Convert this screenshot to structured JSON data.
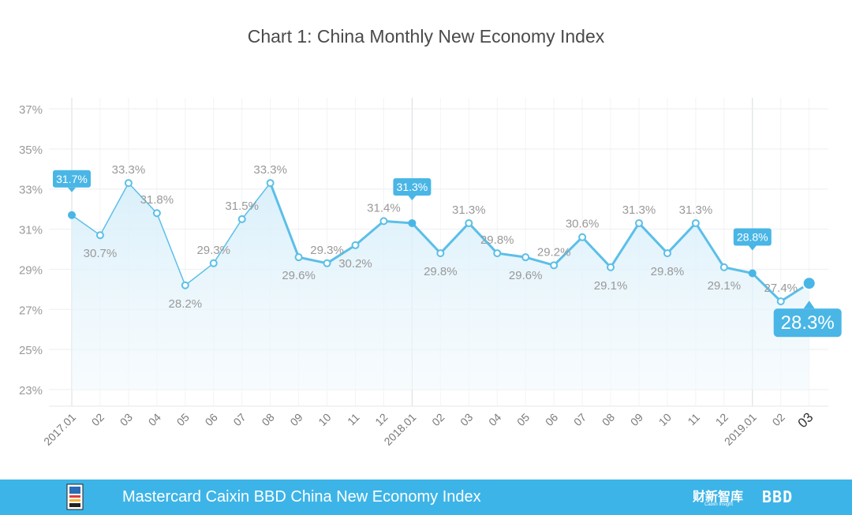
{
  "chart_data": {
    "type": "area",
    "title": "Chart 1: China Monthly New Economy Index",
    "x_labels": [
      "2017.01",
      "02",
      "03",
      "04",
      "05",
      "06",
      "07",
      "08",
      "09",
      "10",
      "11",
      "12",
      "2018.01",
      "02",
      "03",
      "04",
      "05",
      "06",
      "07",
      "08",
      "09",
      "10",
      "11",
      "12",
      "2019.01",
      "02",
      "03"
    ],
    "values": [
      31.7,
      30.7,
      33.3,
      31.8,
      28.2,
      29.3,
      31.5,
      33.3,
      29.6,
      29.3,
      30.2,
      31.4,
      31.3,
      29.8,
      31.3,
      29.8,
      29.6,
      29.2,
      30.6,
      29.1,
      31.3,
      29.8,
      31.3,
      29.1,
      28.8,
      27.4,
      28.3
    ],
    "data_labels": [
      "31.7%",
      "30.7%",
      "33.3%",
      "31.8%",
      "28.2%",
      "29.3%",
      "31.5%",
      "33.3%",
      "29.6%",
      "29.3%",
      "30.2%",
      "31.4%",
      "31.3%",
      "29.8%",
      "31.3%",
      "29.8%",
      "29.6%",
      "29.2%",
      "30.6%",
      "29.1%",
      "31.3%",
      "29.8%",
      "31.3%",
      "29.1%",
      "28.8%",
      "27.4%",
      "28.3%"
    ],
    "highlighted_points": [
      0,
      12,
      24,
      26
    ],
    "y_ticks": [
      "23%",
      "25%",
      "27%",
      "29%",
      "31%",
      "33%",
      "35%",
      "37%"
    ],
    "ylim": [
      23,
      37
    ],
    "grid": true,
    "colors": {
      "line": "#5bbfe8",
      "highlight": "#49b6e6",
      "label": "#999999"
    }
  },
  "footer": {
    "title": "Mastercard Caixin BBD China New Economy Index",
    "logo_caixin": "财新智库",
    "logo_caixin_sub": "Caixin Insight",
    "logo_bbd": "BBD"
  }
}
